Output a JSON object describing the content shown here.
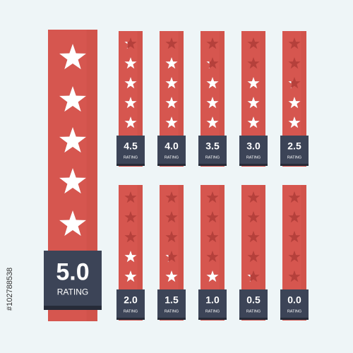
{
  "badge_label": "RATING",
  "image_id": "#102788538",
  "ratings": [
    {
      "value": 5,
      "label": "5.0"
    },
    {
      "value": 4.5,
      "label": "4.5"
    },
    {
      "value": 4,
      "label": "4.0"
    },
    {
      "value": 3.5,
      "label": "3.5"
    },
    {
      "value": 3,
      "label": "3.0"
    },
    {
      "value": 2.5,
      "label": "2.5"
    },
    {
      "value": 2,
      "label": "2.0"
    },
    {
      "value": 1.5,
      "label": "1.5"
    },
    {
      "value": 1,
      "label": "1.0"
    },
    {
      "value": 0.5,
      "label": "0.5"
    },
    {
      "value": 0,
      "label": "0.0"
    }
  ]
}
